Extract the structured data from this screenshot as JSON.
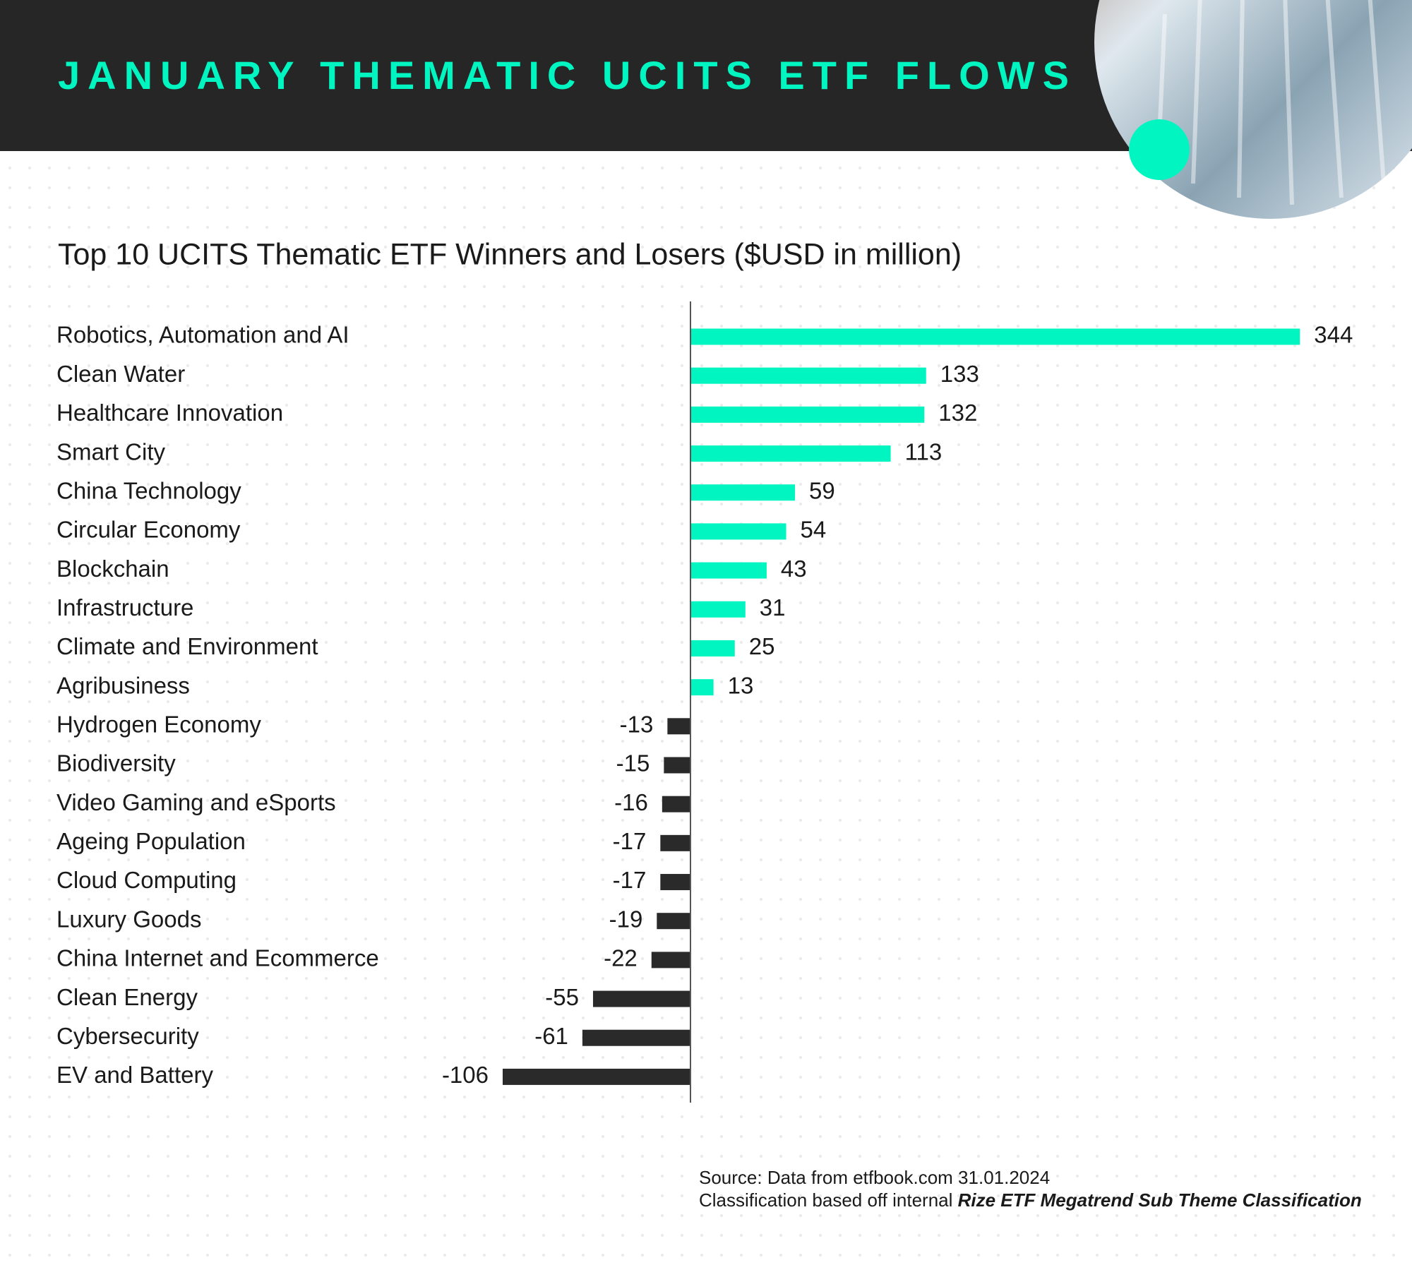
{
  "header": {
    "title": "JANUARY THEMATIC UCITS ETF FLOWS"
  },
  "chart_data": {
    "type": "hbar",
    "title": "Top 10 UCITS Thematic ETF Winners and Losers ($USD in million)",
    "categories": [
      "Robotics, Automation and AI",
      "Clean Water",
      "Healthcare Innovation",
      "Smart City",
      "China Technology",
      "Circular Economy",
      "Blockchain",
      "Infrastructure",
      "Climate and Environment",
      "Agribusiness",
      "Hydrogen Economy",
      "Biodiversity",
      "Video Gaming and eSports",
      "Ageing Population",
      "Cloud Computing",
      "Luxury Goods",
      "China Internet and Ecommerce",
      "Clean Energy",
      "Cybersecurity",
      "EV and Battery"
    ],
    "values": [
      344,
      133,
      132,
      113,
      59,
      54,
      43,
      31,
      25,
      13,
      -13,
      -15,
      -16,
      -17,
      -17,
      -19,
      -22,
      -55,
      -61,
      -106
    ],
    "color_positive": "#00f5c0",
    "color_negative": "#2a2a2a"
  },
  "footer": {
    "source": "Source: Data from etfbook.com 31.01.2024",
    "classification_prefix": "Classification based off internal ",
    "classification_name": "Rize ETF Megatrend Sub Theme Classification"
  }
}
